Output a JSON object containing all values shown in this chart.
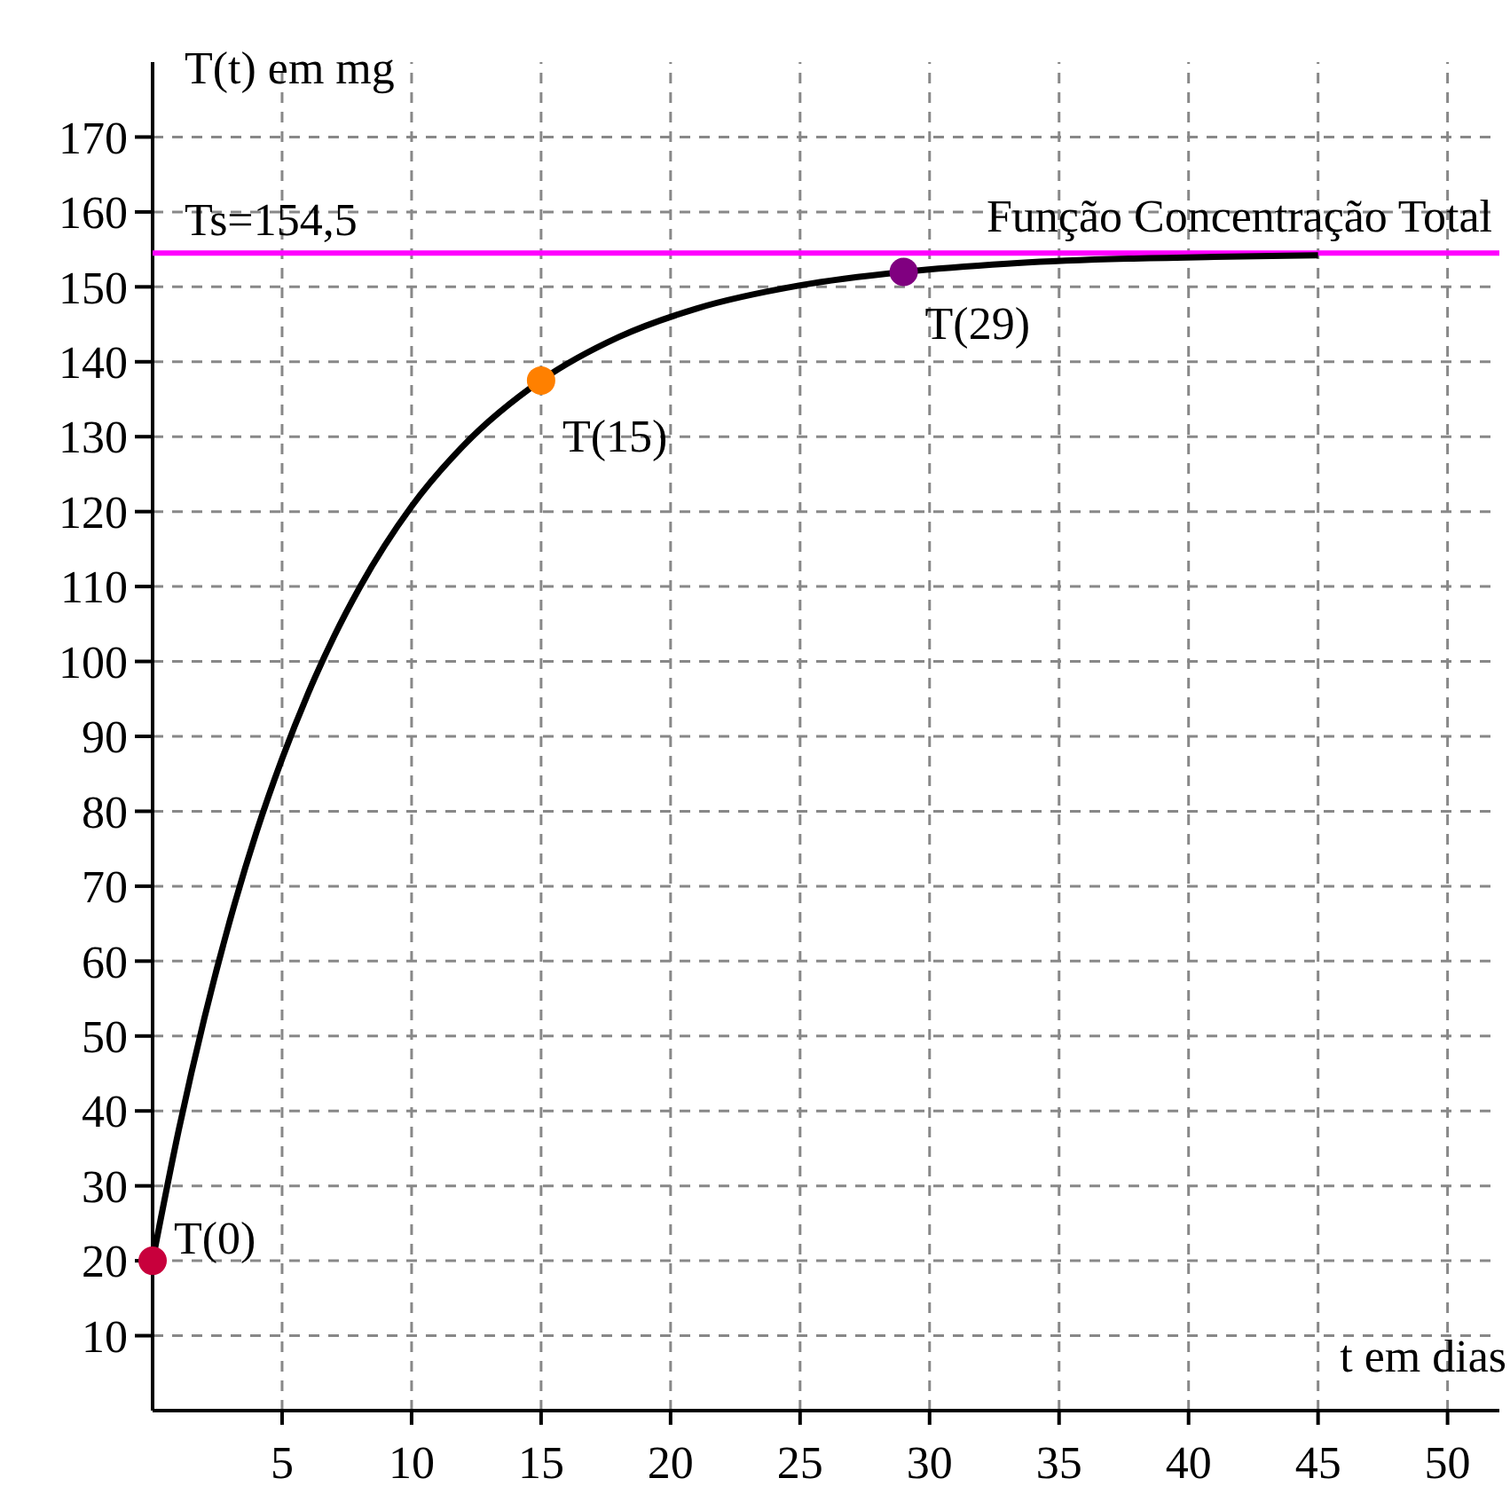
{
  "chart_data": {
    "type": "line",
    "xlabel": "t em dias",
    "ylabel": "T(t) em mg",
    "xlim": [
      0,
      52
    ],
    "ylim": [
      0,
      180
    ],
    "xticks": [
      5,
      10,
      15,
      20,
      25,
      30,
      35,
      40,
      45,
      50
    ],
    "yticks": [
      10,
      20,
      30,
      40,
      50,
      60,
      70,
      80,
      90,
      100,
      110,
      120,
      130,
      140,
      150,
      160,
      170
    ],
    "grid": true,
    "series": [
      {
        "color": "#000000",
        "marker": "none",
        "x": [
          0,
          1,
          2,
          3,
          4,
          5,
          6,
          7,
          8,
          10,
          12,
          15,
          18,
          21,
          25,
          29,
          33,
          37,
          41,
          45
        ],
        "values": [
          20,
          37.3,
          52.4,
          65.6,
          77.1,
          87,
          95.7,
          103.3,
          109.9,
          120.7,
          128.8,
          137.5,
          143.3,
          147.1,
          150.2,
          152,
          153.1,
          153.7,
          154,
          154.2
        ]
      },
      {
        "type": "scatter",
        "color": "#c8003c",
        "marker": "circle",
        "x": [
          0
        ],
        "values": [
          20
        ]
      },
      {
        "type": "scatter",
        "color": "#ff8000",
        "marker": "circle",
        "x": [
          15
        ],
        "values": [
          137.5
        ]
      },
      {
        "type": "scatter",
        "color": "#800080",
        "marker": "circle",
        "x": [
          29
        ],
        "values": [
          152
        ]
      }
    ],
    "ref_lines": [
      {
        "axis": "y",
        "value": 154.5,
        "label": "Ts=154,5",
        "color": "#ff00ff"
      }
    ],
    "annotations": [
      {
        "text": "T(0)",
        "x": 0,
        "y": 20
      },
      {
        "text": "T(15)",
        "x": 15,
        "y": 137.5
      },
      {
        "text": "T(29)",
        "x": 29,
        "y": 152
      },
      {
        "text": "Função Concentração Total",
        "x": 52,
        "y": 154.5
      }
    ]
  }
}
